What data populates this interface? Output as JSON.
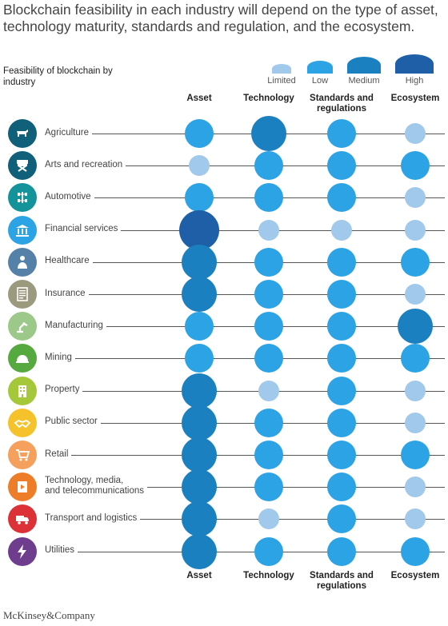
{
  "title": "Blockchain feasibility in each industry will depend on the type of asset, technology maturity, standards and regulation, and the ecosystem.",
  "footer": "McKinsey&Company",
  "chart_data": {
    "type": "bubble-matrix",
    "title": "Feasibility of blockchain by industry",
    "scale": [
      "Limited",
      "Low",
      "Medium",
      "High"
    ],
    "scale_colors": {
      "Limited": "#a1c9ec",
      "Low": "#2ba3e4",
      "Medium": "#1a80c0",
      "High": "#1e5fa8"
    },
    "columns": [
      "Asset",
      "Technology",
      "Standards and regulations",
      "Ecosystem"
    ],
    "rows": [
      {
        "industry": "Agriculture",
        "icon": "cow-icon",
        "icon_color": "#10607a",
        "values": [
          "Low",
          "Medium",
          "Low",
          "Limited"
        ]
      },
      {
        "industry": "Arts and recreation",
        "icon": "director-chair-icon",
        "icon_color": "#10607a",
        "values": [
          "Limited",
          "Low",
          "Low",
          "Low"
        ]
      },
      {
        "industry": "Automotive",
        "icon": "car-chassis-icon",
        "icon_color": "#14939a",
        "values": [
          "Low",
          "Low",
          "Low",
          "Limited"
        ]
      },
      {
        "industry": "Financial services",
        "icon": "bank-icon",
        "icon_color": "#2ba3e4",
        "values": [
          "High",
          "Limited",
          "Limited",
          "Limited"
        ]
      },
      {
        "industry": "Healthcare",
        "icon": "doctor-icon",
        "icon_color": "#5580a8",
        "values": [
          "Medium",
          "Low",
          "Low",
          "Low"
        ]
      },
      {
        "industry": "Insurance",
        "icon": "document-icon",
        "icon_color": "#9b9a7e",
        "values": [
          "Medium",
          "Low",
          "Low",
          "Limited"
        ]
      },
      {
        "industry": "Manufacturing",
        "icon": "robot-arm-icon",
        "icon_color": "#9cc88a",
        "values": [
          "Low",
          "Low",
          "Low",
          "Medium"
        ]
      },
      {
        "industry": "Mining",
        "icon": "hard-hat-icon",
        "icon_color": "#56a93e",
        "values": [
          "Low",
          "Low",
          "Low",
          "Low"
        ]
      },
      {
        "industry": "Property",
        "icon": "building-icon",
        "icon_color": "#a5c83a",
        "values": [
          "Medium",
          "Limited",
          "Low",
          "Limited"
        ]
      },
      {
        "industry": "Public sector",
        "icon": "handshake-icon",
        "icon_color": "#f5c22c",
        "values": [
          "Medium",
          "Low",
          "Low",
          "Limited"
        ]
      },
      {
        "industry": "Retail",
        "icon": "shopping-cart-icon",
        "icon_color": "#f5a05c",
        "values": [
          "Medium",
          "Low",
          "Low",
          "Low"
        ]
      },
      {
        "industry": "Technology, media,\nand telecommunications",
        "icon": "film-icon",
        "icon_color": "#ee7d2a",
        "values": [
          "Medium",
          "Low",
          "Low",
          "Limited"
        ]
      },
      {
        "industry": "Transport and logistics",
        "icon": "truck-icon",
        "icon_color": "#dd3138",
        "values": [
          "Medium",
          "Limited",
          "Low",
          "Limited"
        ]
      },
      {
        "industry": "Utilities",
        "icon": "lightning-icon",
        "icon_color": "#6e3d8e",
        "values": [
          "Medium",
          "Low",
          "Low",
          "Low"
        ]
      }
    ]
  }
}
